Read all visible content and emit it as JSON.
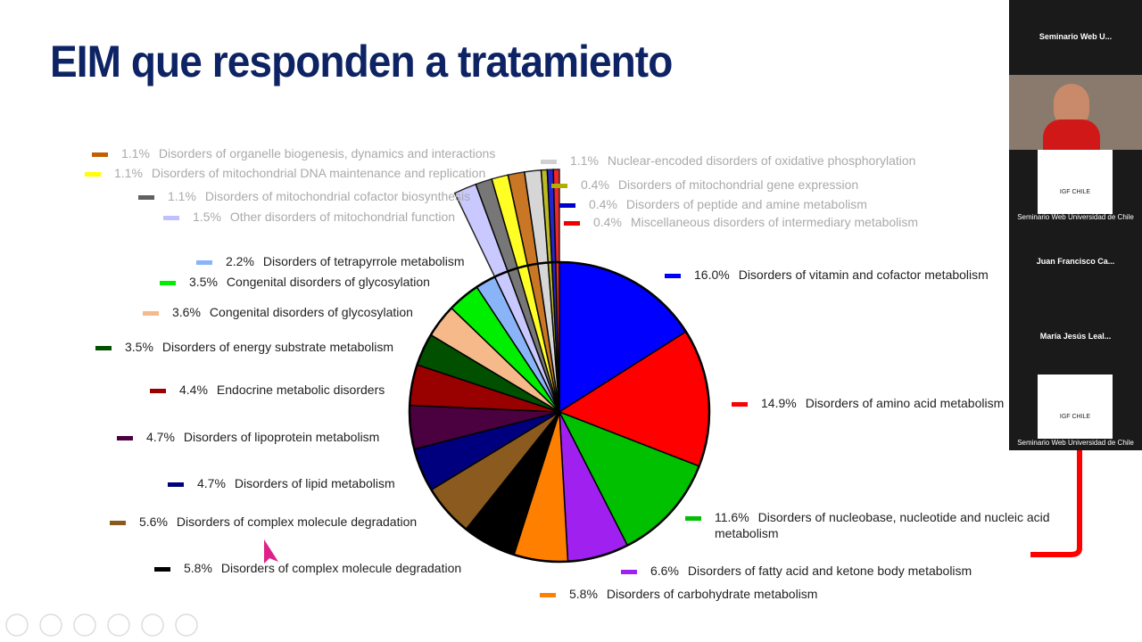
{
  "chart_data": {
    "type": "pie",
    "title": "EIM que responden a tratamiento",
    "categories": [
      "Disorders of vitamin and cofactor metabolism",
      "Disorders of amino acid metabolism",
      "Disorders of nucleobase, nucleotide and nucleic acid metabolism",
      "Disorders of fatty acid and ketone body metabolism",
      "Disorders of carbohydrate metabolism",
      "Disorders of complex molecule degradation",
      "Disorders of complex molecule degradation",
      "Disorders of lipid metabolism",
      "Disorders of lipoprotein metabolism",
      "Endocrine metabolic disorders",
      "Disorders of energy substrate metabolism",
      "Congenital disorders of glycosylation",
      "Congenital disorders of glycosylation",
      "Disorders of tetrapyrrole metabolism",
      "Other disorders of mitochondrial function",
      "Disorders of mitochondrial cofactor biosynthesis",
      "Disorders of mitochondrial DNA maintenance and replication",
      "Disorders of organelle biogenesis, dynamics and interactions",
      "Nuclear-encoded disorders of oxidative phosphorylation",
      "Disorders of mitochondrial gene expression",
      "Disorders of peptide and amine metabolism",
      "Miscellaneous disorders of intermediary metabolism"
    ],
    "values": [
      16.0,
      14.9,
      11.6,
      6.6,
      5.8,
      5.8,
      5.6,
      4.7,
      4.7,
      4.4,
      3.5,
      3.6,
      3.5,
      2.2,
      1.5,
      1.1,
      1.1,
      1.1,
      1.1,
      0.4,
      0.4,
      0.4
    ],
    "value_labels": [
      "16.0%",
      "14.9%",
      "11.6%",
      "6.6%",
      "5.8%",
      "5.8%",
      "5.6%",
      "4.7%",
      "4.7%",
      "4.4%",
      "3.5%",
      "3.6%",
      "3.5%",
      "2.2%",
      "1.5%",
      "1.1%",
      "1.1%",
      "1.1%",
      "1.1%",
      "0.4%",
      "0.4%",
      "0.4%"
    ],
    "colors": [
      "#0000ff",
      "#ff0000",
      "#00c000",
      "#a020f0",
      "#ff8000",
      "#000000",
      "#8b5a1e",
      "#00007f",
      "#4b0040",
      "#990000",
      "#005000",
      "#f5b98a",
      "#00ee00",
      "#8ab4f8",
      "#c0c0ff",
      "#606060",
      "#ffff00",
      "#c06000",
      "#d0d0d0",
      "#b0b000",
      "#0000cc",
      "#ee0000"
    ]
  },
  "participants": [
    "Seminario Web U...",
    "Seminario Web Universidad de Chile",
    "Juan Francisco Ca...",
    "María Jesús Leal...",
    "Seminario Web Universidad de Chile"
  ],
  "logo_label": "IGF CHILE"
}
